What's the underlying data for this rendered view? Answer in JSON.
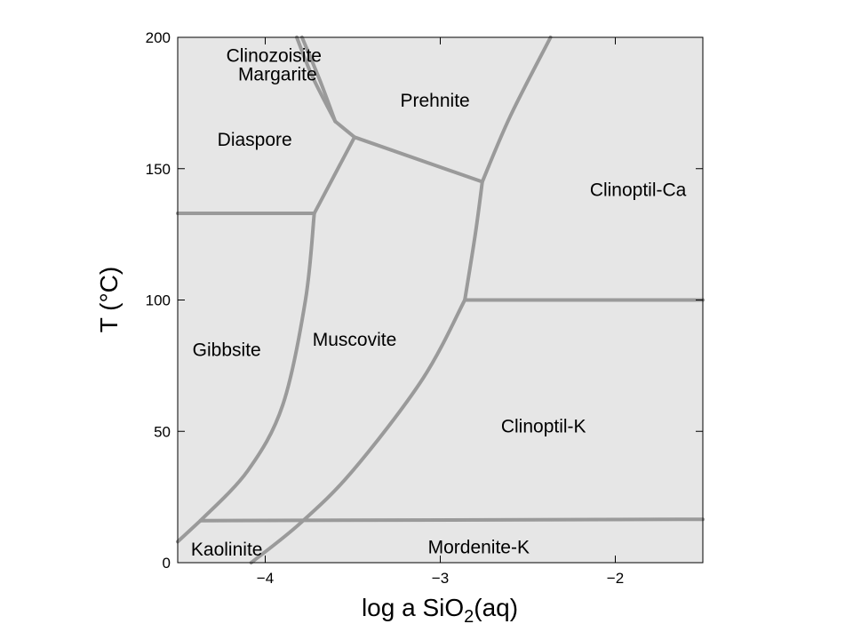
{
  "chart_data": {
    "type": "phase-diagram",
    "xlabel": "log a SiO",
    "xlabel_subscript": "2",
    "xlabel_suffix": "(aq)",
    "ylabel": "T (°C)",
    "xlim": [
      -4.5,
      -1.5
    ],
    "ylim": [
      0,
      200
    ],
    "xticks": [
      {
        "value": -4,
        "label": "−4"
      },
      {
        "value": -3,
        "label": "−3"
      },
      {
        "value": -2,
        "label": "−2"
      }
    ],
    "yticks": [
      {
        "value": 0,
        "label": "0"
      },
      {
        "value": 50,
        "label": "50"
      },
      {
        "value": 100,
        "label": "100"
      },
      {
        "value": 150,
        "label": "150"
      },
      {
        "value": 200,
        "label": "200"
      }
    ],
    "colors": {
      "plot_background": "#e6e6e6",
      "boundary": "#9a9a9a",
      "frame": "#000000"
    },
    "fields": [
      {
        "name": "Clinozoisite",
        "x": -3.95,
        "y": 193
      },
      {
        "name": "Margarite",
        "x": -3.93,
        "y": 186
      },
      {
        "name": "Prehnite",
        "x": -3.03,
        "y": 176
      },
      {
        "name": "Diaspore",
        "x": -4.06,
        "y": 161
      },
      {
        "name": "Clinoptil-Ca",
        "x": -1.87,
        "y": 142
      },
      {
        "name": "Gibbsite",
        "x": -4.22,
        "y": 81
      },
      {
        "name": "Muscovite",
        "x": -3.49,
        "y": 85
      },
      {
        "name": "Clinoptil-K",
        "x": -2.41,
        "y": 52
      },
      {
        "name": "Kaolinite",
        "x": -4.22,
        "y": 5
      },
      {
        "name": "Mordenite-K",
        "x": -2.78,
        "y": 6
      }
    ],
    "boundaries": [
      {
        "name": "clinozoisite-margarite-1",
        "points": [
          [
            -3.82,
            200
          ],
          [
            -3.73,
            185
          ],
          [
            -3.6,
            168
          ]
        ]
      },
      {
        "name": "clinozoisite-margarite-2",
        "points": [
          [
            -3.79,
            200
          ],
          [
            -3.69,
            184
          ],
          [
            -3.6,
            168
          ]
        ]
      },
      {
        "name": "margarite-diaspore",
        "points": [
          [
            -3.6,
            168
          ],
          [
            -3.49,
            162
          ]
        ]
      },
      {
        "name": "prehnite-upper",
        "points": [
          [
            -3.49,
            162
          ],
          [
            -2.76,
            145
          ]
        ]
      },
      {
        "name": "prehnite-clinoptil-ca",
        "points": [
          [
            -2.76,
            145
          ],
          [
            -2.6,
            170
          ],
          [
            -2.37,
            200
          ]
        ]
      },
      {
        "name": "diaspore-muscovite",
        "points": [
          [
            -3.49,
            162
          ],
          [
            -3.72,
            133
          ]
        ]
      },
      {
        "name": "diaspore-gibbsite",
        "points": [
          [
            -4.5,
            133
          ],
          [
            -3.72,
            133
          ]
        ]
      },
      {
        "name": "gibbsite-muscovite",
        "points": [
          [
            -3.72,
            133
          ],
          [
            -3.77,
            100
          ],
          [
            -3.9,
            60
          ],
          [
            -4.1,
            35
          ],
          [
            -4.37,
            16
          ]
        ]
      },
      {
        "name": "gibbsite-kaolinite",
        "points": [
          [
            -4.37,
            16
          ],
          [
            -4.5,
            8
          ]
        ]
      },
      {
        "name": "kaolinite-top",
        "points": [
          [
            -4.37,
            16
          ],
          [
            -1.5,
            16.5
          ]
        ]
      },
      {
        "name": "muscovite-clinoptil-k",
        "points": [
          [
            -2.86,
            100
          ],
          [
            -3.1,
            70
          ],
          [
            -3.5,
            35
          ],
          [
            -3.8,
            15
          ],
          [
            -4.08,
            0
          ]
        ]
      },
      {
        "name": "clinoptil-ca-clinoptil-k",
        "points": [
          [
            -2.86,
            100
          ],
          [
            -1.5,
            100
          ]
        ]
      },
      {
        "name": "muscovite-clinoptil-boundary",
        "points": [
          [
            -2.76,
            145
          ],
          [
            -2.8,
            125
          ],
          [
            -2.86,
            100
          ]
        ]
      }
    ]
  }
}
